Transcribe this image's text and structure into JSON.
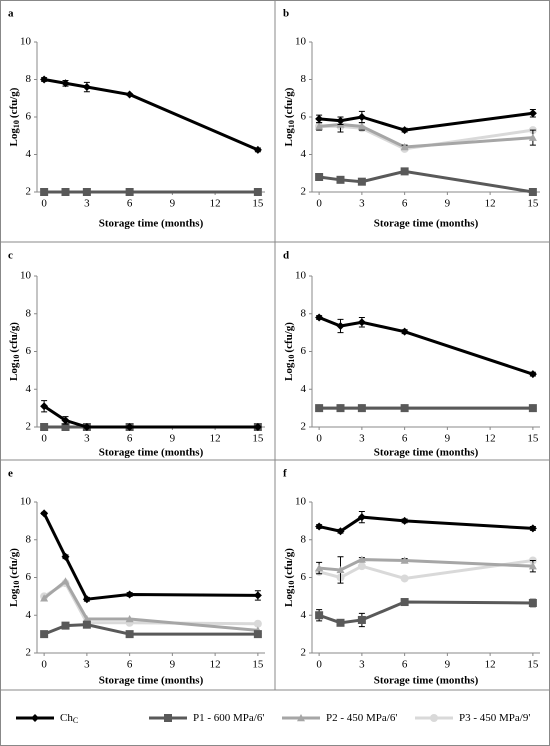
{
  "chart_data": [
    {
      "type": "line",
      "panel": "a",
      "xlabel": "Storage time (months)",
      "ylabel": "Log",
      "ylabel_subscript": "10",
      "ylabel_unit": "(cfu/g)",
      "x": [
        0,
        1.5,
        3,
        6,
        15
      ],
      "xlim": [
        -0.5,
        15.5
      ],
      "xticks": [
        0,
        3,
        6,
        9,
        12,
        15
      ],
      "ylim": [
        2,
        10
      ],
      "yticks": [
        2,
        4,
        6,
        8,
        10
      ],
      "series": [
        {
          "values": [
            8.0,
            7.8,
            7.6,
            7.2,
            4.25
          ],
          "errors": [
            0.1,
            0.15,
            0.25,
            0.05,
            0.1
          ]
        },
        {
          "values": [
            2.0,
            2.0,
            2.0,
            2.0,
            2.0
          ]
        },
        {
          "values": [
            2.0,
            2.0,
            2.0,
            2.0,
            2.0
          ]
        },
        {
          "values": [
            2.0,
            2.0,
            2.0,
            2.0,
            2.0
          ]
        }
      ]
    },
    {
      "type": "line",
      "panel": "b",
      "xlabel": "Storage time (months)",
      "ylabel": "Log",
      "ylabel_subscript": "10",
      "ylabel_unit": "(cfu/g)",
      "x": [
        0,
        1.5,
        3,
        6,
        15
      ],
      "xlim": [
        -0.5,
        15.5
      ],
      "xticks": [
        0,
        3,
        6,
        9,
        12,
        15
      ],
      "ylim": [
        2,
        10
      ],
      "yticks": [
        2,
        4,
        6,
        8,
        10
      ],
      "series": [
        {
          "values": [
            5.9,
            5.8,
            6.0,
            5.3,
            6.2
          ],
          "errors": [
            0.2,
            0.2,
            0.3,
            0.1,
            0.2
          ]
        },
        {
          "values": [
            2.8,
            2.65,
            2.55,
            3.1,
            2.0
          ]
        },
        {
          "values": [
            5.5,
            5.6,
            5.5,
            4.4,
            4.9
          ],
          "errors": [
            0.2,
            0.4,
            0.2,
            0.1,
            0.4
          ]
        },
        {
          "values": [
            5.5,
            5.5,
            5.4,
            4.3,
            5.3
          ]
        }
      ]
    },
    {
      "type": "line",
      "panel": "c",
      "xlabel": "Storage time (months)",
      "ylabel": "Log",
      "ylabel_subscript": "10",
      "ylabel_unit": "(cfu/g)",
      "x": [
        0,
        1.5,
        3,
        6,
        15
      ],
      "xlim": [
        -0.5,
        15.5
      ],
      "xticks": [
        0,
        3,
        6,
        9,
        12,
        15
      ],
      "ylim": [
        2,
        10
      ],
      "yticks": [
        2,
        4,
        6,
        8,
        10
      ],
      "series": [
        {
          "values": [
            3.1,
            2.35,
            2.0,
            2.0,
            2.0
          ],
          "errors": [
            0.3,
            0.2,
            0.05,
            0.0,
            0.0
          ]
        },
        {
          "values": [
            2.0,
            2.0,
            2.0,
            2.0,
            2.0
          ]
        },
        {
          "values": [
            2.0,
            2.0,
            2.0,
            2.0,
            2.0
          ]
        },
        {
          "values": [
            2.0,
            2.0,
            2.0,
            2.0,
            2.0
          ]
        }
      ]
    },
    {
      "type": "line",
      "panel": "d",
      "xlabel": "Storage time (months)",
      "ylabel": "Log",
      "ylabel_subscript": "10",
      "ylabel_unit": "(cfu/g)",
      "x": [
        0,
        1.5,
        3,
        6,
        15
      ],
      "xlim": [
        -0.5,
        15.5
      ],
      "xticks": [
        0,
        3,
        6,
        9,
        12,
        15
      ],
      "ylim": [
        2,
        10
      ],
      "yticks": [
        2,
        4,
        6,
        8,
        10
      ],
      "series": [
        {
          "values": [
            7.8,
            7.35,
            7.55,
            7.05,
            4.8
          ],
          "errors": [
            0.1,
            0.35,
            0.25,
            0.1,
            0.1
          ]
        },
        {
          "values": [
            3.0,
            3.0,
            3.0,
            3.0,
            3.0
          ]
        },
        {
          "values": [
            3.0,
            3.0,
            3.0,
            3.0,
            3.0
          ]
        },
        {
          "values": [
            3.0,
            3.0,
            3.0,
            3.0,
            3.0
          ]
        }
      ]
    },
    {
      "type": "line",
      "panel": "e",
      "xlabel": "Storage time (months)",
      "ylabel": "Log",
      "ylabel_subscript": "10",
      "ylabel_unit": "(cfu/g)",
      "x": [
        0,
        1.5,
        3,
        6,
        15
      ],
      "xlim": [
        -0.5,
        15.5
      ],
      "xticks": [
        0,
        3,
        6,
        9,
        12,
        15
      ],
      "ylim": [
        2,
        10
      ],
      "yticks": [
        2,
        4,
        6,
        8,
        10
      ],
      "series": [
        {
          "values": [
            9.4,
            7.1,
            4.85,
            5.1,
            5.05
          ],
          "errors": [
            0.05,
            0.1,
            0.1,
            0.1,
            0.25
          ]
        },
        {
          "values": [
            3.0,
            3.45,
            3.5,
            3.0,
            3.0
          ]
        },
        {
          "values": [
            4.9,
            5.8,
            3.8,
            3.8,
            3.2
          ]
        },
        {
          "values": [
            5.0,
            5.7,
            3.6,
            3.6,
            3.55
          ]
        }
      ]
    },
    {
      "type": "line",
      "panel": "f",
      "xlabel": "Storage time (months)",
      "ylabel": "Log",
      "ylabel_subscript": "10",
      "ylabel_unit": "(cfu/g)",
      "x": [
        0,
        1.5,
        3,
        6,
        15
      ],
      "xlim": [
        -0.5,
        15.5
      ],
      "xticks": [
        0,
        3,
        6,
        9,
        12,
        15
      ],
      "ylim": [
        2,
        10
      ],
      "yticks": [
        2,
        4,
        6,
        8,
        10
      ],
      "series": [
        {
          "values": [
            8.7,
            8.45,
            9.2,
            9.0,
            8.6
          ],
          "errors": [
            0.1,
            0.1,
            0.3,
            0.1,
            0.1
          ]
        },
        {
          "values": [
            4.0,
            3.6,
            3.75,
            4.7,
            4.65
          ],
          "errors": [
            0.3,
            0.1,
            0.35,
            0.1,
            0.2
          ]
        },
        {
          "values": [
            6.5,
            6.4,
            6.95,
            6.9,
            6.6
          ],
          "errors": [
            0.3,
            0.7,
            0.1,
            0.1,
            0.3
          ]
        },
        {
          "values": [
            6.3,
            6.0,
            6.6,
            5.95,
            6.9
          ]
        }
      ]
    }
  ],
  "legend": [
    {
      "name": "Ch",
      "name_subscript": "C",
      "color": "#000000",
      "marker": "diamond"
    },
    {
      "name": "P1 - 600 MPa/6'",
      "color": "#595959",
      "marker": "square"
    },
    {
      "name": "P2 - 450 MPa/6'",
      "color": "#a6a6a6",
      "marker": "triangle"
    },
    {
      "name": "P3 - 450 MPa/9'",
      "color": "#d9d9d9",
      "marker": "circle"
    }
  ]
}
